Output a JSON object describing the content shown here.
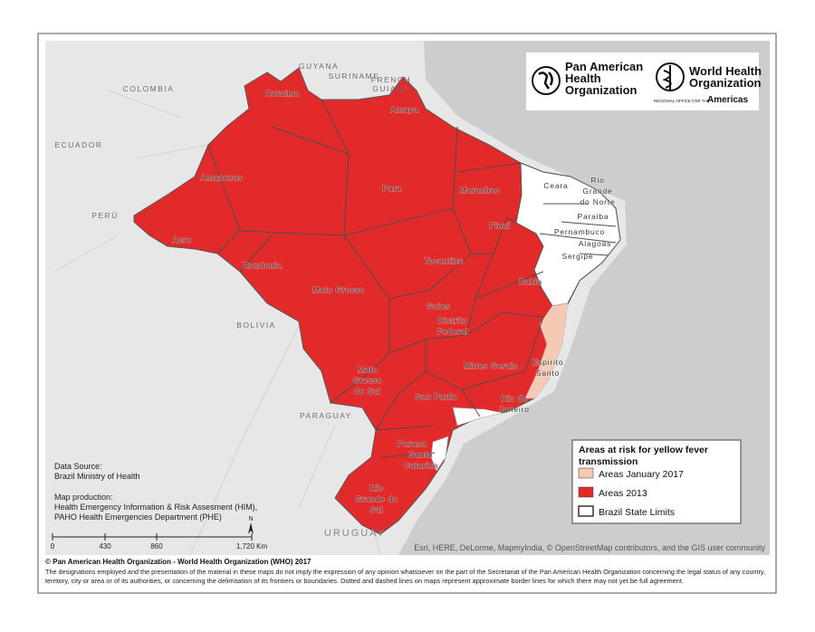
{
  "logos": {
    "paho": [
      "Pan American",
      "Health",
      "Organization"
    ],
    "who": [
      "World Health",
      "Organization"
    ],
    "who_region": "REGIONAL OFFICE FOR THE",
    "who_region_name": "Americas"
  },
  "countries": [
    {
      "lines": [
        "COLOMBIA"
      ]
    },
    {
      "lines": [
        "GUYANA"
      ]
    },
    {
      "lines": [
        "SURINAME"
      ]
    },
    {
      "lines": [
        "FRENCH",
        "GUIANA"
      ]
    },
    {
      "lines": [
        "ECUADOR"
      ]
    },
    {
      "lines": [
        "PERÚ"
      ]
    },
    {
      "lines": [
        "BOLIVIA"
      ]
    },
    {
      "lines": [
        "PARAGUAY"
      ]
    },
    {
      "lines": [
        "URUGUAY"
      ]
    }
  ],
  "states": [
    {
      "lines": [
        "Roraima"
      ]
    },
    {
      "lines": [
        "Amapa"
      ]
    },
    {
      "lines": [
        "Amazonas"
      ]
    },
    {
      "lines": [
        "Para"
      ]
    },
    {
      "lines": [
        "Maranhao"
      ]
    },
    {
      "lines": [
        "Ceara"
      ]
    },
    {
      "lines": [
        "Rio",
        "Grande",
        "do Norte"
      ]
    },
    {
      "lines": [
        "Paraiba"
      ]
    },
    {
      "lines": [
        "Pernambuco"
      ]
    },
    {
      "lines": [
        "Alagoas"
      ]
    },
    {
      "lines": [
        "Sergipe"
      ]
    },
    {
      "lines": [
        "Piaui"
      ]
    },
    {
      "lines": [
        "Acre"
      ]
    },
    {
      "lines": [
        "Rondonia"
      ]
    },
    {
      "lines": [
        "Tocantins"
      ]
    },
    {
      "lines": [
        "Bahia"
      ]
    },
    {
      "lines": [
        "Mato Grosso"
      ]
    },
    {
      "lines": [
        "Goias"
      ]
    },
    {
      "lines": [
        "Distrito",
        "Federal"
      ]
    },
    {
      "lines": [
        "Minas Gerais"
      ]
    },
    {
      "lines": [
        "Espirito",
        "Santo"
      ]
    },
    {
      "lines": [
        "Mato",
        "Grosso",
        "do Sul"
      ]
    },
    {
      "lines": [
        "Sao Paulo"
      ]
    },
    {
      "lines": [
        "Rio de",
        "Janeiro"
      ]
    },
    {
      "lines": [
        "Parana"
      ]
    },
    {
      "lines": [
        "Santa",
        "Catarina"
      ]
    },
    {
      "lines": [
        "Rio",
        "Grande do",
        "Sul"
      ]
    }
  ],
  "legend": {
    "title": [
      "Areas at risk for yellow fever",
      "transmission"
    ],
    "items": [
      {
        "label": "Areas January 2017",
        "color": "#f6c9b4"
      },
      {
        "label": "Areas 2013",
        "color": "#e32a2a"
      },
      {
        "label": "Brazil State Limits",
        "color": "#ffffff"
      }
    ]
  },
  "data_source": [
    "Data Source:",
    "Brazil Ministry of Health"
  ],
  "map_production": [
    "Map production:",
    "Health Emergency Information & Risk Assesment (HIM),",
    "PAHO Health Emergencies Department (PHE)"
  ],
  "scale": {
    "labels": [
      "0",
      "430",
      "860",
      "1,720 Km"
    ],
    "north": "N"
  },
  "attribution": "Esri, HERE, DeLorme, MapmyIndia, © OpenStreetMap contributors, and the GIS user community",
  "footer": {
    "copyright": "© Pan American Health Organization - World Health Organization (WHO) 2017",
    "disclaimer": [
      "The designations employed and the presentation of the material in these maps do not imply the expression of any opinion whatsoever on the part of the Secretariat of the Pan American Health Organization concerning the legal status of any country,",
      "territory, city or area or of its authorities, or concerning the delimitation of its frontiers or boundaries. Dotted and dashed lines on maps represent approximate border lines for which there may not yet be full agreement."
    ]
  }
}
